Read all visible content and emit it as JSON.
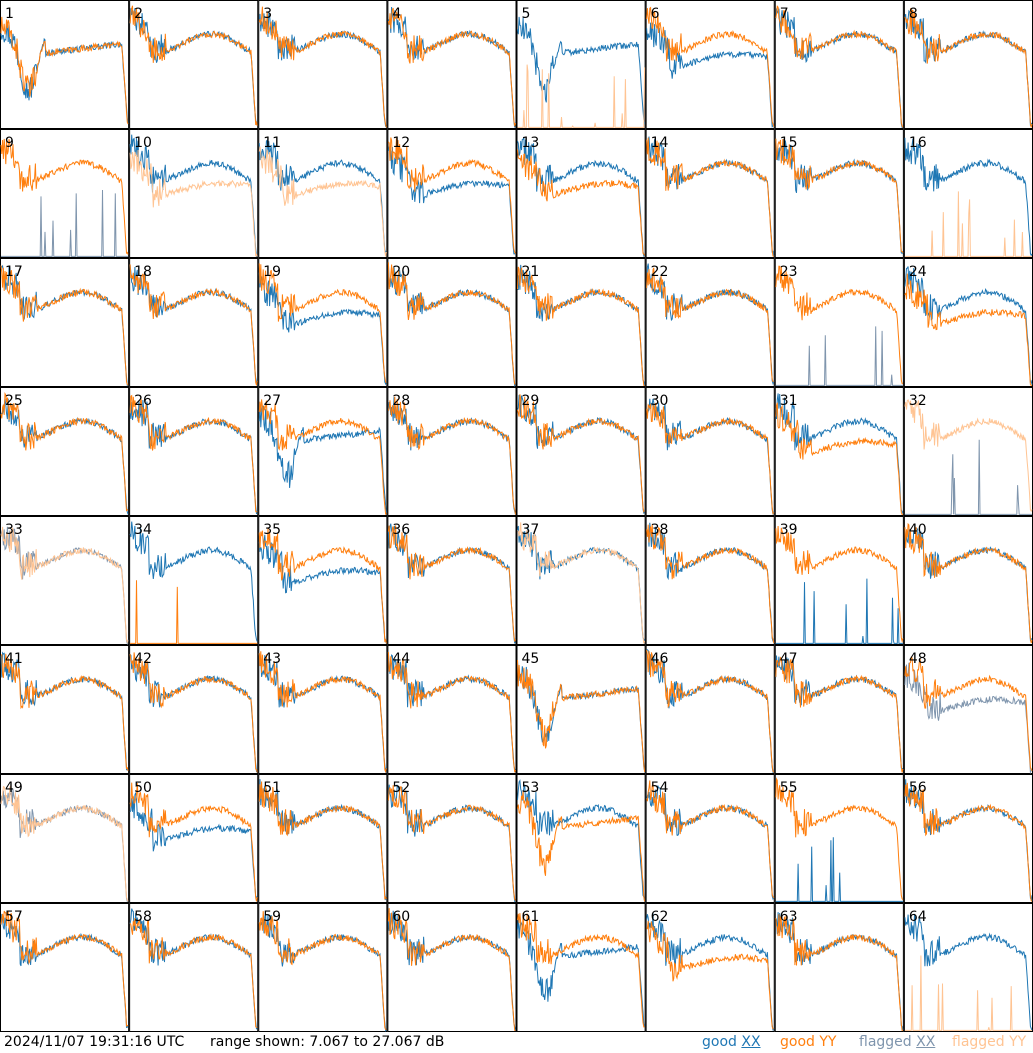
{
  "footer": {
    "timestamp": "2024/11/07 19:31:16 UTC",
    "range_text": "range shown: 7.067 to 27.067 dB",
    "legend": {
      "good_xx_a": "good ",
      "good_xx_b": "XX",
      "good_yy": "good YY",
      "flag_xx_a": "flagged ",
      "flag_xx_b": "XX",
      "flag_yy": "flagged YY"
    }
  },
  "colors": {
    "good_xx": "#1f77b4",
    "good_yy": "#ff7f0e",
    "flagged_xx": "#7f95ad",
    "flagged_yy": "#ffc493",
    "grid_line": "#000000"
  },
  "chart_data": {
    "type": "line",
    "layout": "8x8 small multiples",
    "ylim": [
      7.067,
      27.067
    ],
    "yunit": "dB",
    "panels": [
      {
        "id": "1",
        "xx": "good",
        "yy": "good",
        "shape_xx": "dip",
        "shape_yy": "dip"
      },
      {
        "id": "2",
        "xx": "good",
        "yy": "good",
        "shape_xx": "normal",
        "shape_yy": "normal"
      },
      {
        "id": "3",
        "xx": "good",
        "yy": "good",
        "shape_xx": "normal",
        "shape_yy": "normal"
      },
      {
        "id": "4",
        "xx": "good",
        "yy": "good",
        "shape_xx": "normal",
        "shape_yy": "normal"
      },
      {
        "id": "5",
        "xx": "good",
        "yy": "flagged",
        "shape_xx": "dip",
        "shape_yy": "dead"
      },
      {
        "id": "6",
        "xx": "good",
        "yy": "good",
        "shape_xx": "low",
        "shape_yy": "normal"
      },
      {
        "id": "7",
        "xx": "good",
        "yy": "good",
        "shape_xx": "normal",
        "shape_yy": "normal"
      },
      {
        "id": "8",
        "xx": "good",
        "yy": "good",
        "shape_xx": "normal",
        "shape_yy": "normal"
      },
      {
        "id": "9",
        "xx": "flagged",
        "yy": "good",
        "shape_xx": "dead",
        "shape_yy": "normal"
      },
      {
        "id": "10",
        "xx": "good",
        "yy": "flagged",
        "shape_xx": "normal",
        "shape_yy": "low"
      },
      {
        "id": "11",
        "xx": "good",
        "yy": "flagged",
        "shape_xx": "normal",
        "shape_yy": "low"
      },
      {
        "id": "12",
        "xx": "good",
        "yy": "good",
        "shape_xx": "low",
        "shape_yy": "normal"
      },
      {
        "id": "13",
        "xx": "good",
        "yy": "good",
        "shape_xx": "normal",
        "shape_yy": "low"
      },
      {
        "id": "14",
        "xx": "good",
        "yy": "good",
        "shape_xx": "normal",
        "shape_yy": "normal"
      },
      {
        "id": "15",
        "xx": "good",
        "yy": "good",
        "shape_xx": "normal",
        "shape_yy": "normal"
      },
      {
        "id": "16",
        "xx": "good",
        "yy": "flagged",
        "shape_xx": "normal",
        "shape_yy": "dead"
      },
      {
        "id": "17",
        "xx": "good",
        "yy": "good",
        "shape_xx": "normal",
        "shape_yy": "normal"
      },
      {
        "id": "18",
        "xx": "good",
        "yy": "good",
        "shape_xx": "normal",
        "shape_yy": "normal"
      },
      {
        "id": "19",
        "xx": "good",
        "yy": "good",
        "shape_xx": "low",
        "shape_yy": "normal"
      },
      {
        "id": "20",
        "xx": "good",
        "yy": "good",
        "shape_xx": "normal",
        "shape_yy": "normal"
      },
      {
        "id": "21",
        "xx": "good",
        "yy": "good",
        "shape_xx": "normal",
        "shape_yy": "normal"
      },
      {
        "id": "22",
        "xx": "good",
        "yy": "good",
        "shape_xx": "normal",
        "shape_yy": "normal"
      },
      {
        "id": "23",
        "xx": "flagged",
        "yy": "good",
        "shape_xx": "dead",
        "shape_yy": "normal"
      },
      {
        "id": "24",
        "xx": "good",
        "yy": "good",
        "shape_xx": "normal",
        "shape_yy": "low"
      },
      {
        "id": "25",
        "xx": "good",
        "yy": "good",
        "shape_xx": "normal",
        "shape_yy": "normal"
      },
      {
        "id": "26",
        "xx": "good",
        "yy": "good",
        "shape_xx": "normal",
        "shape_yy": "normal"
      },
      {
        "id": "27",
        "xx": "good",
        "yy": "good",
        "shape_xx": "dip",
        "shape_yy": "normal"
      },
      {
        "id": "28",
        "xx": "good",
        "yy": "good",
        "shape_xx": "normal",
        "shape_yy": "normal"
      },
      {
        "id": "29",
        "xx": "good",
        "yy": "good",
        "shape_xx": "normal",
        "shape_yy": "normal"
      },
      {
        "id": "30",
        "xx": "good",
        "yy": "good",
        "shape_xx": "normal",
        "shape_yy": "normal"
      },
      {
        "id": "31",
        "xx": "good",
        "yy": "good",
        "shape_xx": "normal",
        "shape_yy": "low"
      },
      {
        "id": "32",
        "xx": "flagged",
        "yy": "flagged",
        "shape_xx": "dead",
        "shape_yy": "normal"
      },
      {
        "id": "33",
        "xx": "flagged",
        "yy": "flagged",
        "shape_xx": "normal",
        "shape_yy": "normal"
      },
      {
        "id": "34",
        "xx": "good",
        "yy": "good",
        "shape_xx": "normal",
        "shape_yy": "dead"
      },
      {
        "id": "35",
        "xx": "good",
        "yy": "good",
        "shape_xx": "low",
        "shape_yy": "normal"
      },
      {
        "id": "36",
        "xx": "good",
        "yy": "good",
        "shape_xx": "normal",
        "shape_yy": "normal"
      },
      {
        "id": "37",
        "xx": "good",
        "yy": "flagged",
        "shape_xx": "normal",
        "shape_yy": "normal"
      },
      {
        "id": "38",
        "xx": "good",
        "yy": "good",
        "shape_xx": "normal",
        "shape_yy": "normal"
      },
      {
        "id": "39",
        "xx": "good",
        "yy": "good",
        "shape_xx": "dead",
        "shape_yy": "normal"
      },
      {
        "id": "40",
        "xx": "good",
        "yy": "good",
        "shape_xx": "normal",
        "shape_yy": "normal"
      },
      {
        "id": "41",
        "xx": "good",
        "yy": "good",
        "shape_xx": "normal",
        "shape_yy": "normal"
      },
      {
        "id": "42",
        "xx": "good",
        "yy": "good",
        "shape_xx": "normal",
        "shape_yy": "normal"
      },
      {
        "id": "43",
        "xx": "good",
        "yy": "good",
        "shape_xx": "normal",
        "shape_yy": "normal"
      },
      {
        "id": "44",
        "xx": "good",
        "yy": "good",
        "shape_xx": "normal",
        "shape_yy": "normal"
      },
      {
        "id": "45",
        "xx": "good",
        "yy": "good",
        "shape_xx": "dip",
        "shape_yy": "dip"
      },
      {
        "id": "46",
        "xx": "good",
        "yy": "good",
        "shape_xx": "normal",
        "shape_yy": "normal"
      },
      {
        "id": "47",
        "xx": "good",
        "yy": "good",
        "shape_xx": "normal",
        "shape_yy": "normal"
      },
      {
        "id": "48",
        "xx": "flagged",
        "yy": "good",
        "shape_xx": "low",
        "shape_yy": "normal"
      },
      {
        "id": "49",
        "xx": "flagged",
        "yy": "flagged",
        "shape_xx": "normal",
        "shape_yy": "normal"
      },
      {
        "id": "50",
        "xx": "good",
        "yy": "good",
        "shape_xx": "low",
        "shape_yy": "normal"
      },
      {
        "id": "51",
        "xx": "good",
        "yy": "good",
        "shape_xx": "normal",
        "shape_yy": "normal"
      },
      {
        "id": "52",
        "xx": "good",
        "yy": "good",
        "shape_xx": "normal",
        "shape_yy": "normal"
      },
      {
        "id": "53",
        "xx": "good",
        "yy": "good",
        "shape_xx": "normal",
        "shape_yy": "dip"
      },
      {
        "id": "54",
        "xx": "good",
        "yy": "good",
        "shape_xx": "normal",
        "shape_yy": "normal"
      },
      {
        "id": "55",
        "xx": "good",
        "yy": "good",
        "shape_xx": "dead",
        "shape_yy": "normal"
      },
      {
        "id": "56",
        "xx": "good",
        "yy": "good",
        "shape_xx": "normal",
        "shape_yy": "normal"
      },
      {
        "id": "57",
        "xx": "good",
        "yy": "good",
        "shape_xx": "normal",
        "shape_yy": "normal"
      },
      {
        "id": "58",
        "xx": "good",
        "yy": "good",
        "shape_xx": "normal",
        "shape_yy": "normal"
      },
      {
        "id": "59",
        "xx": "good",
        "yy": "good",
        "shape_xx": "normal",
        "shape_yy": "normal"
      },
      {
        "id": "60",
        "xx": "good",
        "yy": "good",
        "shape_xx": "normal",
        "shape_yy": "normal"
      },
      {
        "id": "61",
        "xx": "good",
        "yy": "good",
        "shape_xx": "dip",
        "shape_yy": "normal"
      },
      {
        "id": "62",
        "xx": "good",
        "yy": "good",
        "shape_xx": "normal",
        "shape_yy": "low"
      },
      {
        "id": "63",
        "xx": "good",
        "yy": "good",
        "shape_xx": "normal",
        "shape_yy": "normal"
      },
      {
        "id": "64",
        "xx": "good",
        "yy": "flagged",
        "shape_xx": "normal",
        "shape_yy": "dead"
      }
    ]
  }
}
